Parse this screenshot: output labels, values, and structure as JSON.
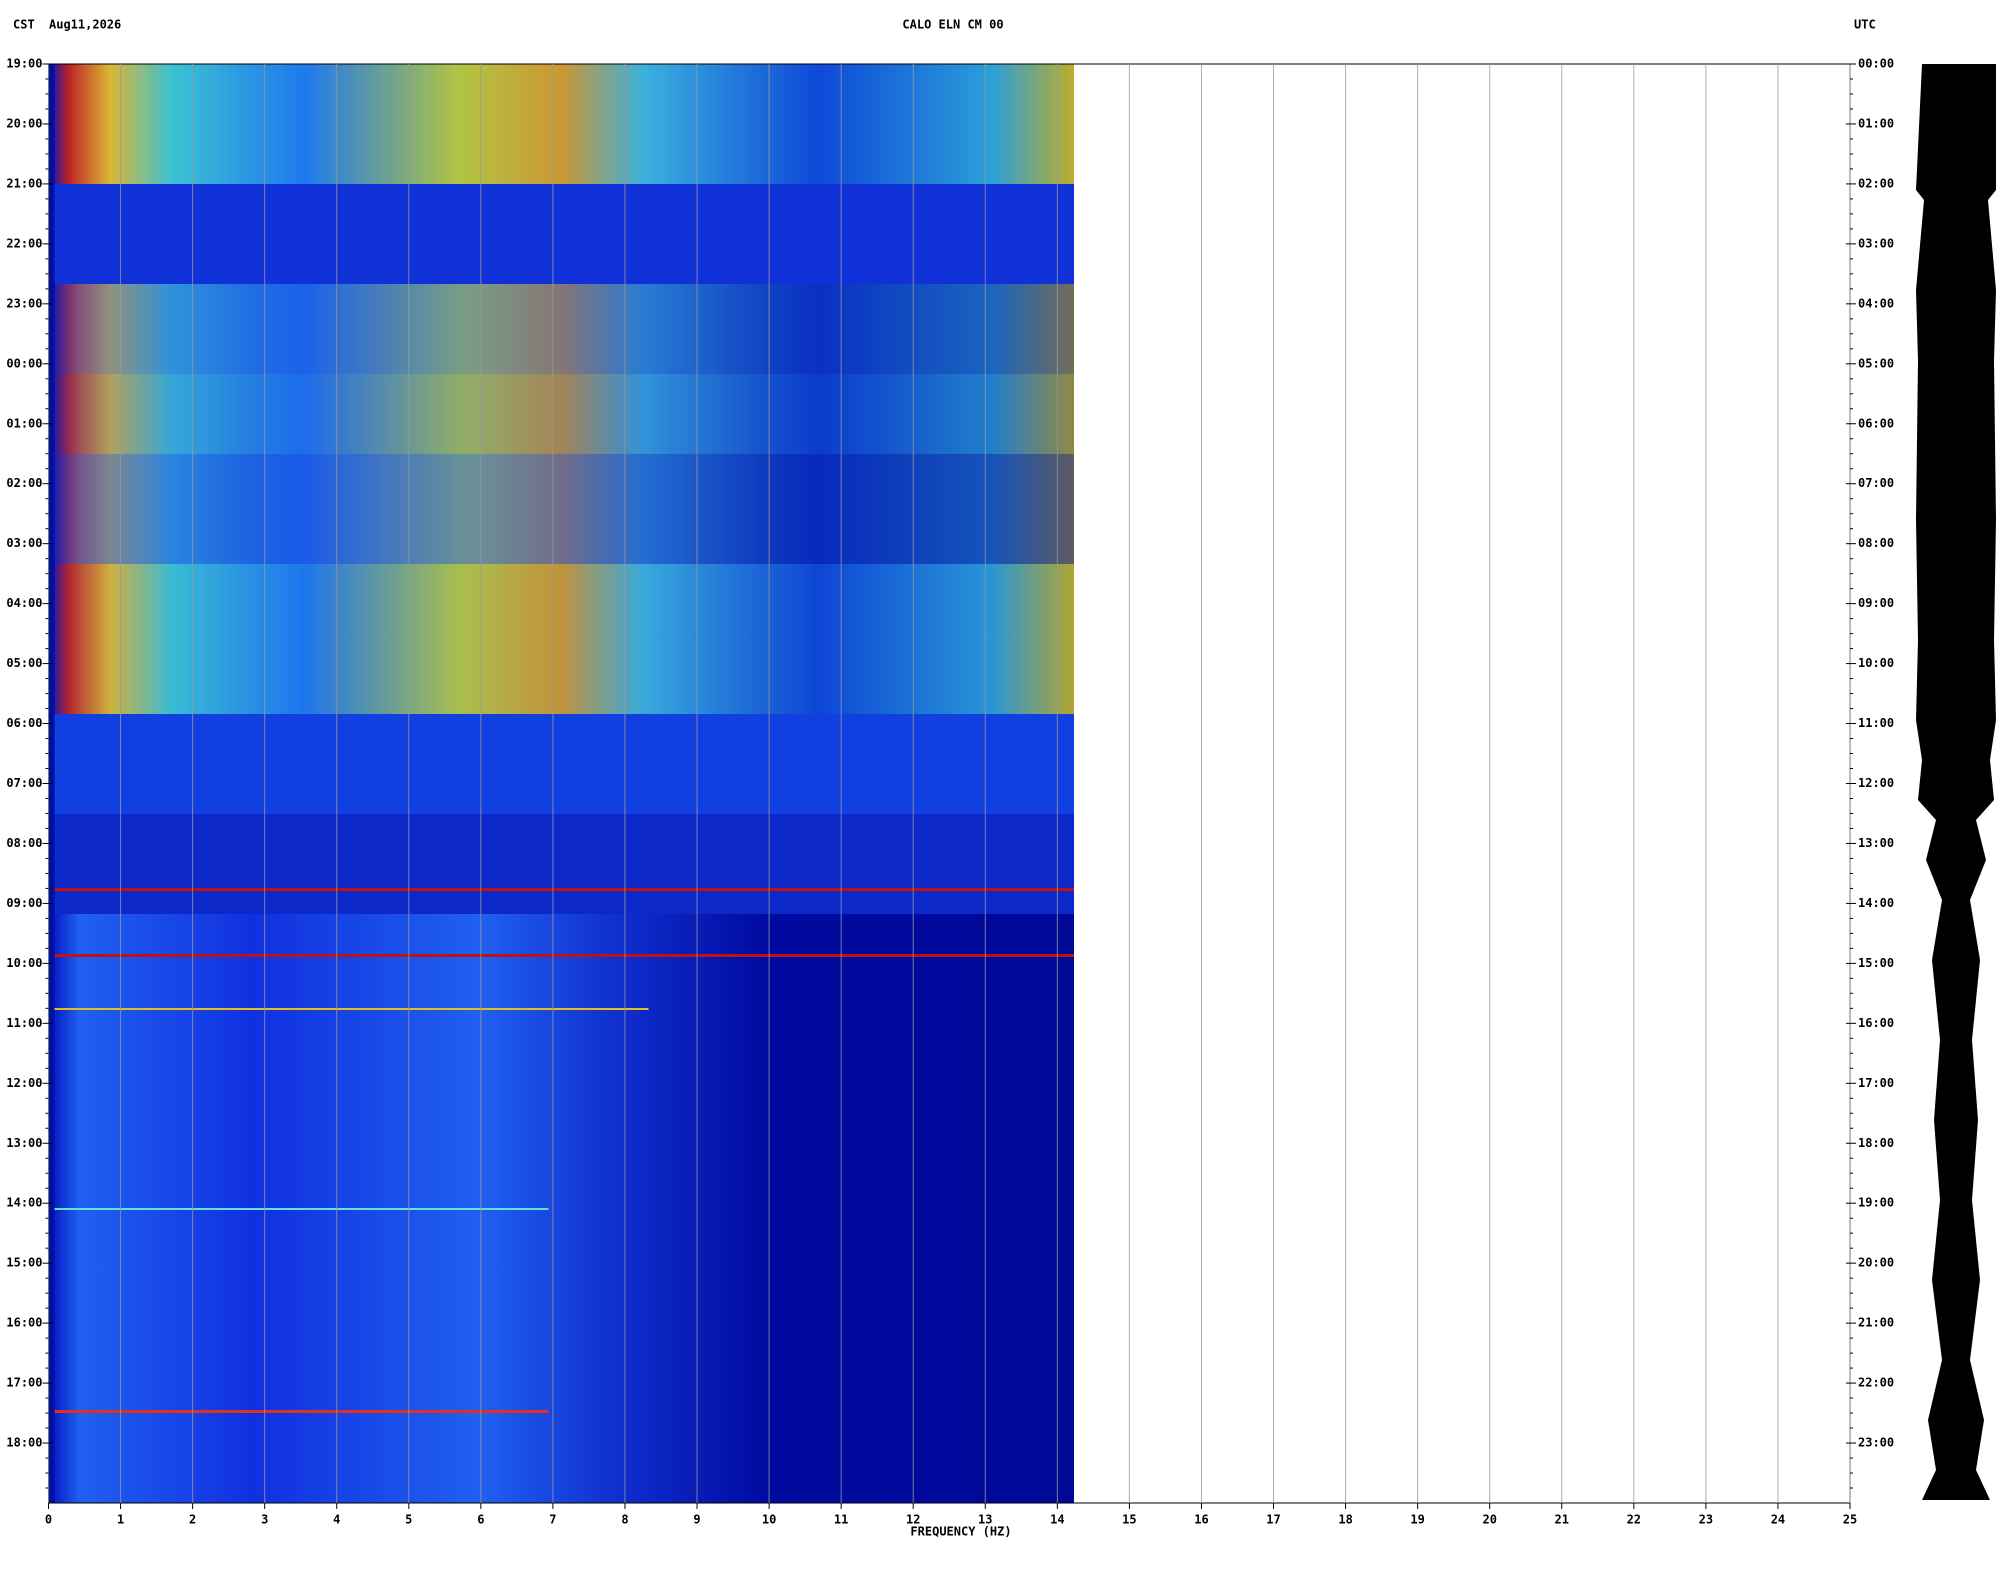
{
  "chart_data": {
    "type": "spectrogram",
    "timezone_left": "CST",
    "date": "Aug11,2026",
    "title": "CALO ELN CM 00",
    "timezone_right": "UTC",
    "xlabel": "FREQUENCY (HZ)",
    "xlim": [
      0,
      25
    ],
    "xticks": [
      0,
      1,
      2,
      3,
      4,
      5,
      6,
      7,
      8,
      9,
      10,
      11,
      12,
      13,
      14,
      15,
      16,
      17,
      18,
      19,
      20,
      21,
      22,
      23,
      24,
      25
    ],
    "grid": true,
    "left_time_labels": [
      "19:00",
      "20:00",
      "21:00",
      "22:00",
      "23:00",
      "00:00",
      "01:00",
      "02:00",
      "03:00",
      "04:00",
      "05:00",
      "06:00",
      "07:00",
      "08:00",
      "09:00",
      "10:00",
      "11:00",
      "12:00",
      "13:00",
      "14:00",
      "15:00",
      "16:00",
      "17:00",
      "18:00"
    ],
    "right_time_labels": [
      "00:00",
      "01:00",
      "02:00",
      "03:00",
      "04:00",
      "05:00",
      "06:00",
      "07:00",
      "08:00",
      "09:00",
      "10:00",
      "11:00",
      "12:00",
      "13:00",
      "14:00",
      "15:00",
      "16:00",
      "17:00",
      "18:00",
      "19:00",
      "20:00",
      "21:00",
      "22:00",
      "23:00"
    ]
  }
}
